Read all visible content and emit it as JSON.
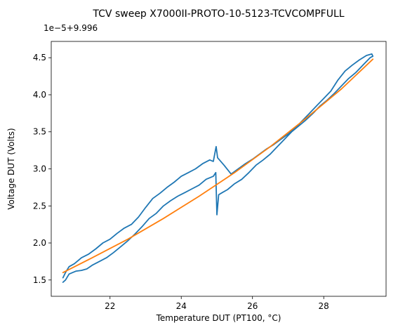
{
  "chart_data": {
    "type": "line",
    "title": "TCV sweep X7000II-PROTO-10-5123-TCVCOMPFULL",
    "xlabel": "Temperature DUT (PT100, °C)",
    "ylabel": "Voltage DUT (Volts)",
    "offset_label": "1e−5+9.996",
    "xlim": [
      20.35,
      29.75
    ],
    "ylim": [
      1.28,
      4.72
    ],
    "xticks": [
      22,
      24,
      26,
      28
    ],
    "yticks": [
      1.5,
      2.0,
      2.5,
      3.0,
      3.5,
      4.0,
      4.5
    ],
    "xtick_labels": [
      "22",
      "24",
      "26",
      "28"
    ],
    "ytick_labels": [
      "1.5",
      "2.0",
      "2.5",
      "3.0",
      "3.5",
      "4.0",
      "4.5"
    ],
    "grid": false,
    "series": [
      {
        "color": "#1f77b4",
        "x": [
          20.68,
          20.75,
          20.85,
          20.95,
          21.05,
          21.2,
          21.35,
          21.5,
          21.7,
          21.9,
          22.1,
          22.3,
          22.5,
          22.7,
          22.9,
          23.1,
          23.3,
          23.5,
          23.7,
          23.9,
          24.1,
          24.3,
          24.5,
          24.7,
          24.9,
          24.97,
          25.0,
          25.05,
          25.15,
          25.3,
          25.5,
          25.7,
          25.9,
          26.1,
          26.3,
          26.5,
          26.7,
          26.9,
          27.1,
          27.3,
          27.5,
          27.7,
          27.9,
          28.1,
          28.3,
          28.5,
          28.7,
          28.9,
          29.1,
          29.3,
          29.38,
          29.35,
          29.2,
          29.0,
          28.8,
          28.6,
          28.4,
          28.2,
          28.0,
          27.8,
          27.6,
          27.4,
          27.2,
          27.0,
          26.8,
          26.6,
          26.4,
          26.2,
          26.0,
          25.8,
          25.6,
          25.4,
          25.2,
          25.02,
          24.98,
          24.9,
          24.8,
          24.6,
          24.4,
          24.2,
          24.0,
          23.8,
          23.6,
          23.4,
          23.2,
          23.0,
          22.8,
          22.6,
          22.4,
          22.2,
          22.0,
          21.8,
          21.6,
          21.4,
          21.2,
          21.0,
          20.85,
          20.75,
          20.68
        ],
        "y": [
          1.47,
          1.5,
          1.58,
          1.6,
          1.62,
          1.63,
          1.65,
          1.7,
          1.75,
          1.8,
          1.87,
          1.95,
          2.03,
          2.12,
          2.22,
          2.33,
          2.4,
          2.5,
          2.57,
          2.63,
          2.68,
          2.73,
          2.78,
          2.86,
          2.9,
          2.95,
          2.38,
          2.65,
          2.68,
          2.72,
          2.8,
          2.86,
          2.95,
          3.05,
          3.12,
          3.2,
          3.3,
          3.4,
          3.5,
          3.58,
          3.66,
          3.75,
          3.85,
          3.93,
          4.02,
          4.12,
          4.22,
          4.3,
          4.4,
          4.5,
          4.52,
          4.55,
          4.53,
          4.47,
          4.4,
          4.32,
          4.2,
          4.05,
          3.95,
          3.85,
          3.75,
          3.65,
          3.55,
          3.47,
          3.4,
          3.33,
          3.27,
          3.2,
          3.13,
          3.07,
          3.0,
          2.93,
          3.05,
          3.15,
          3.3,
          3.1,
          3.12,
          3.07,
          3.0,
          2.95,
          2.9,
          2.82,
          2.75,
          2.67,
          2.6,
          2.48,
          2.35,
          2.25,
          2.2,
          2.13,
          2.05,
          2.0,
          1.92,
          1.85,
          1.8,
          1.72,
          1.68,
          1.6,
          1.53
        ]
      },
      {
        "color": "#ff7f0e",
        "x": [
          20.68,
          21.5,
          22.5,
          23.5,
          24.5,
          25.5,
          26.5,
          27.5,
          28.5,
          29.38
        ],
        "y": [
          1.6,
          1.8,
          2.05,
          2.33,
          2.63,
          2.95,
          3.3,
          3.68,
          4.08,
          4.48
        ]
      }
    ]
  }
}
